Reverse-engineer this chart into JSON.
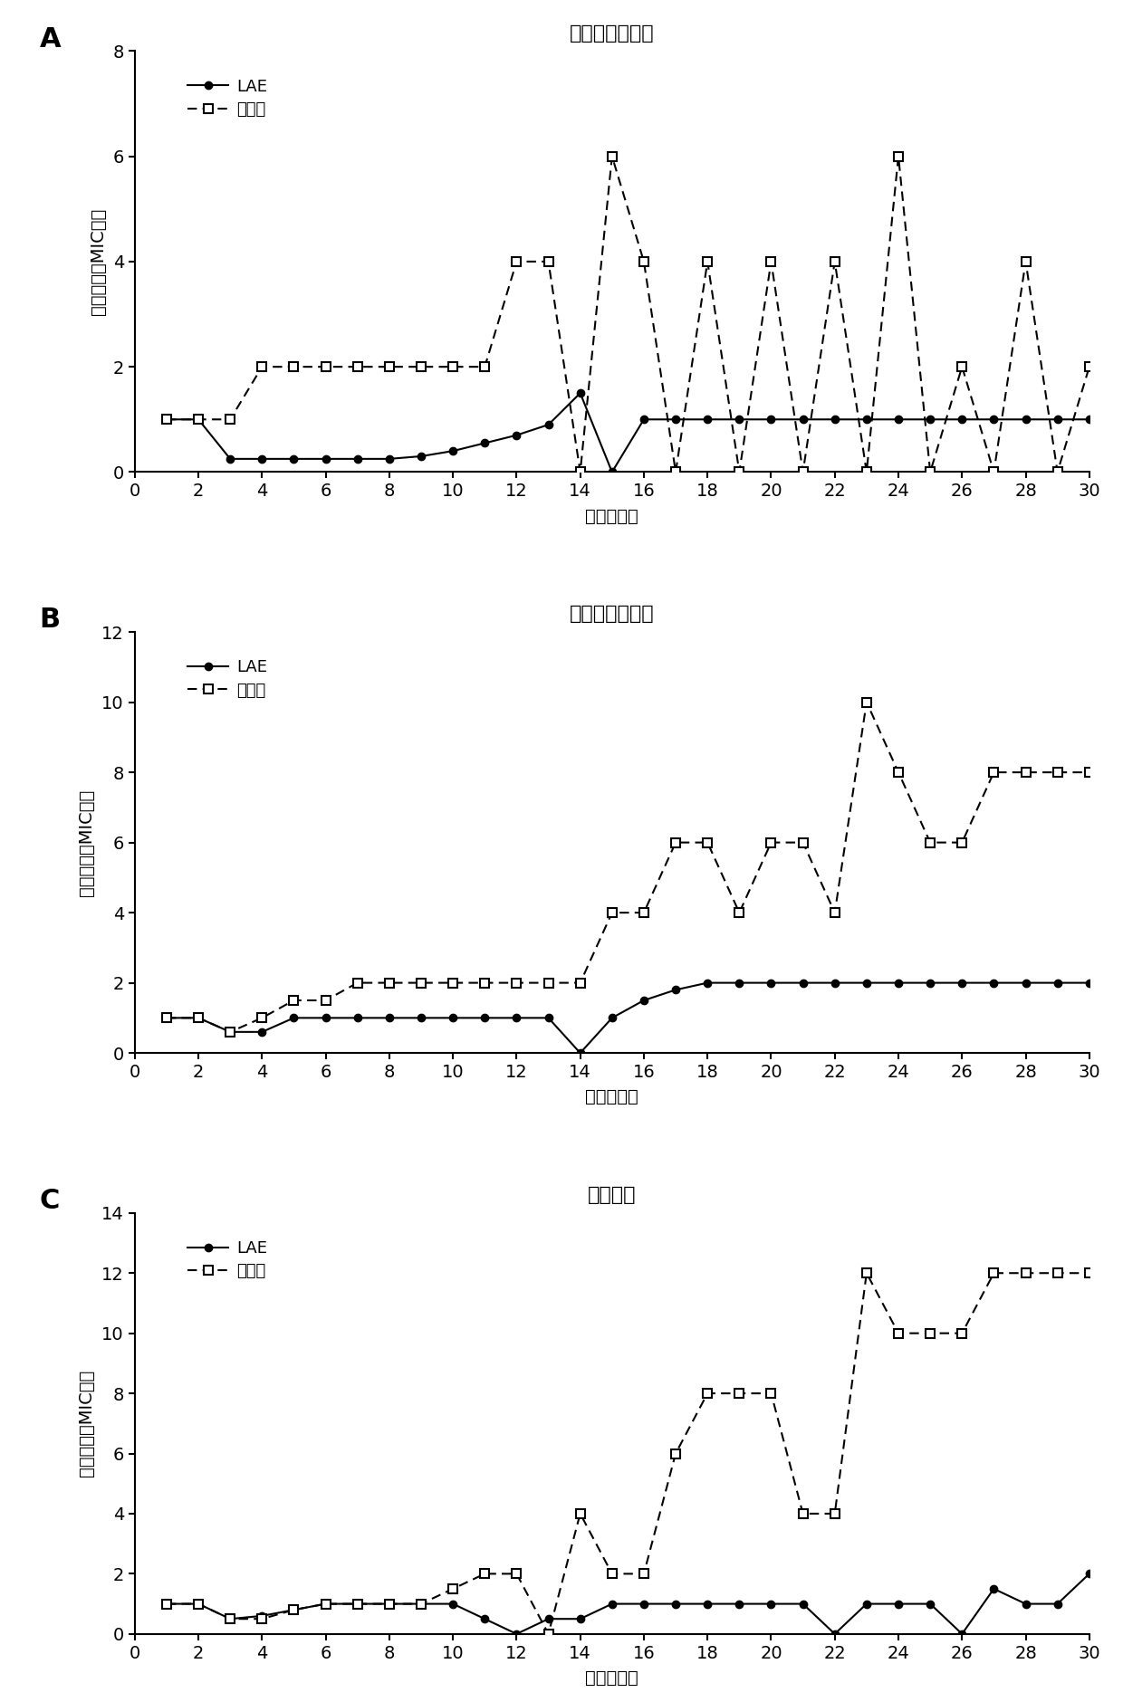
{
  "panel_A": {
    "title": "鸭疫里默氏杆菌",
    "label": "A",
    "ylim": [
      0,
      8
    ],
    "yticks": [
      0,
      2,
      4,
      6,
      8
    ],
    "xlim": [
      0,
      30
    ],
    "xticks": [
      0,
      2,
      4,
      6,
      8,
      10,
      12,
      14,
      16,
      18,
      20,
      22,
      24,
      26,
      28,
      30
    ],
    "LAE_x": [
      1,
      2,
      3,
      4,
      5,
      6,
      7,
      8,
      9,
      10,
      11,
      12,
      13,
      14,
      15,
      16,
      17,
      18,
      19,
      20,
      21,
      22,
      23,
      24,
      25,
      26,
      27,
      28,
      29,
      30
    ],
    "LAE_y": [
      1.0,
      1.0,
      0.25,
      0.25,
      0.25,
      0.25,
      0.25,
      0.25,
      0.3,
      0.4,
      0.55,
      0.7,
      0.9,
      1.5,
      0.0,
      1.0,
      1.0,
      1.0,
      1.0,
      1.0,
      1.0,
      1.0,
      1.0,
      1.0,
      1.0,
      1.0,
      1.0,
      1.0,
      1.0,
      1.0
    ],
    "chlor_x": [
      1,
      2,
      3,
      4,
      5,
      6,
      7,
      8,
      9,
      10,
      11,
      12,
      13,
      14,
      15,
      16,
      17,
      18,
      19,
      20,
      21,
      22,
      23,
      24,
      25,
      26,
      27,
      28,
      29,
      30
    ],
    "chlor_y": [
      1.0,
      1.0,
      1.0,
      2.0,
      2.0,
      2.0,
      2.0,
      2.0,
      2.0,
      2.0,
      2.0,
      4.0,
      4.0,
      0.0,
      6.0,
      4.0,
      0.0,
      4.0,
      0.0,
      4.0,
      0.0,
      4.0,
      0.0,
      6.0,
      0.0,
      2.0,
      0.0,
      4.0,
      0.0,
      2.0
    ]
  },
  "panel_B": {
    "title": "金黄色葡萄球菌",
    "label": "B",
    "ylim": [
      0,
      12
    ],
    "yticks": [
      0,
      2,
      4,
      6,
      8,
      10,
      12
    ],
    "xlim": [
      0,
      30
    ],
    "xticks": [
      0,
      2,
      4,
      6,
      8,
      10,
      12,
      14,
      16,
      18,
      20,
      22,
      24,
      26,
      28,
      30
    ],
    "LAE_x": [
      1,
      2,
      3,
      4,
      5,
      6,
      7,
      8,
      9,
      10,
      11,
      12,
      13,
      14,
      15,
      16,
      17,
      18,
      19,
      20,
      21,
      22,
      23,
      24,
      25,
      26,
      27,
      28,
      29,
      30
    ],
    "LAE_y": [
      1.0,
      1.0,
      0.6,
      0.6,
      1.0,
      1.0,
      1.0,
      1.0,
      1.0,
      1.0,
      1.0,
      1.0,
      1.0,
      0.0,
      1.0,
      1.5,
      1.8,
      2.0,
      2.0,
      2.0,
      2.0,
      2.0,
      2.0,
      2.0,
      2.0,
      2.0,
      2.0,
      2.0,
      2.0,
      2.0
    ],
    "chlor_x": [
      1,
      2,
      3,
      4,
      5,
      6,
      7,
      8,
      9,
      10,
      11,
      12,
      13,
      14,
      15,
      16,
      17,
      18,
      19,
      20,
      21,
      22,
      23,
      24,
      25,
      26,
      27,
      28,
      29,
      30
    ],
    "chlor_y": [
      1.0,
      1.0,
      0.6,
      1.0,
      1.5,
      1.5,
      2.0,
      2.0,
      2.0,
      2.0,
      2.0,
      2.0,
      2.0,
      2.0,
      4.0,
      4.0,
      6.0,
      6.0,
      4.0,
      6.0,
      6.0,
      4.0,
      10.0,
      8.0,
      6.0,
      6.0,
      8.0,
      8.0,
      8.0,
      8.0
    ]
  },
  "panel_C": {
    "title": "大肠杆菌",
    "label": "C",
    "ylim": [
      0,
      14
    ],
    "yticks": [
      0,
      2,
      4,
      6,
      8,
      10,
      12,
      14
    ],
    "xlim": [
      0,
      30
    ],
    "xticks": [
      0,
      2,
      4,
      6,
      8,
      10,
      12,
      14,
      16,
      18,
      20,
      22,
      24,
      26,
      28,
      30
    ],
    "LAE_x": [
      1,
      2,
      3,
      4,
      5,
      6,
      7,
      8,
      9,
      10,
      11,
      12,
      13,
      14,
      15,
      16,
      17,
      18,
      19,
      20,
      21,
      22,
      23,
      24,
      25,
      26,
      27,
      28,
      29,
      30
    ],
    "LAE_y": [
      1.0,
      1.0,
      0.5,
      0.6,
      0.8,
      1.0,
      1.0,
      1.0,
      1.0,
      1.0,
      0.5,
      0.0,
      0.5,
      0.5,
      1.0,
      1.0,
      1.0,
      1.0,
      1.0,
      1.0,
      1.0,
      0.0,
      1.0,
      1.0,
      1.0,
      0.0,
      1.5,
      1.0,
      1.0,
      2.0
    ],
    "chlor_x": [
      1,
      2,
      3,
      4,
      5,
      6,
      7,
      8,
      9,
      10,
      11,
      12,
      13,
      14,
      15,
      16,
      17,
      18,
      19,
      20,
      21,
      22,
      23,
      24,
      25,
      26,
      27,
      28,
      29,
      30
    ],
    "chlor_y": [
      1.0,
      1.0,
      0.5,
      0.5,
      0.8,
      1.0,
      1.0,
      1.0,
      1.0,
      1.5,
      2.0,
      2.0,
      0.0,
      4.0,
      2.0,
      2.0,
      6.0,
      8.0,
      8.0,
      8.0,
      4.0,
      4.0,
      12.0,
      10.0,
      10.0,
      10.0,
      12.0,
      12.0,
      12.0,
      12.0
    ]
  },
  "ylabel": "相对于初始MIC倍数",
  "xlabel": "时间（天）",
  "legend_LAE": "LAE",
  "legend_chlor": "氯霉素",
  "bg_color": "#ffffff"
}
